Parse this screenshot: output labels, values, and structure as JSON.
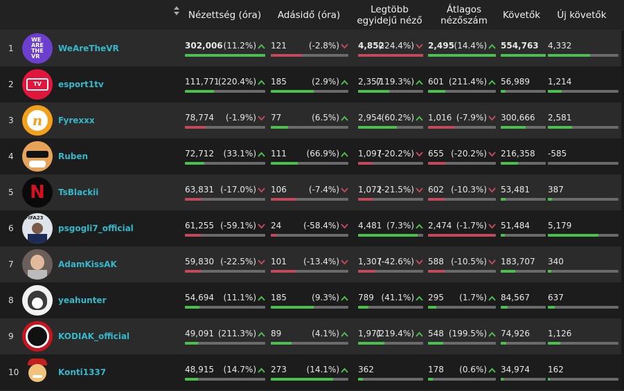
{
  "headers": {
    "views": "Nézettség (óra)",
    "airtime": "Adásidő (óra)",
    "peak": "Legtöbb egyidejű néző",
    "avg": "Átlagos nézőszám",
    "followers": "Követők",
    "new_followers": "Új követők"
  },
  "colors": {
    "up": "#4dbe50",
    "down": "#c24a5c",
    "name": "#35b8c9"
  },
  "rows": [
    {
      "rank": "1",
      "name": "WeAreTheVR",
      "avatar": "werethevr-logo",
      "views": {
        "v": "302,006",
        "p": "(11.2%)",
        "t": "up",
        "fill": 1.0,
        "bold": true
      },
      "air": {
        "v": "121",
        "p": "(-2.8%)",
        "t": "down",
        "fill": 0.4
      },
      "peak": {
        "v": "4,852",
        "p": "(-24.4%)",
        "t": "down",
        "fill": 1.0,
        "bold": true
      },
      "avg": {
        "v": "2,495",
        "p": "(14.4%)",
        "t": "up",
        "fill": 1.0,
        "bold": true
      },
      "fol": {
        "v": "554,763",
        "fill": 1.0,
        "bold": true
      },
      "newf": {
        "v": "4,332",
        "fill": 0.6
      }
    },
    {
      "rank": "2",
      "name": "esport1tv",
      "avatar": "esport1-logo",
      "views": {
        "v": "111,771",
        "p": "(220.4%)",
        "t": "up",
        "fill": 0.36
      },
      "air": {
        "v": "185",
        "p": "(2.9%)",
        "t": "up",
        "fill": 0.55
      },
      "peak": {
        "v": "2,357",
        "p": "(119.3%)",
        "t": "up",
        "fill": 0.48
      },
      "avg": {
        "v": "601",
        "p": "(211.4%)",
        "t": "up",
        "fill": 0.25
      },
      "fol": {
        "v": "56,989",
        "fill": 0.1
      },
      "newf": {
        "v": "1,214",
        "fill": 0.2
      }
    },
    {
      "rank": "3",
      "name": "Fyrexxx",
      "avatar": "fyrexxx-logo",
      "views": {
        "v": "78,774",
        "p": "(-1.9%)",
        "t": "down",
        "fill": 0.26
      },
      "air": {
        "v": "77",
        "p": "(6.5%)",
        "t": "up",
        "fill": 0.22
      },
      "peak": {
        "v": "2,954",
        "p": "(60.2%)",
        "t": "up",
        "fill": 0.6
      },
      "avg": {
        "v": "1,016",
        "p": "(-7.9%)",
        "t": "down",
        "fill": 0.4
      },
      "fol": {
        "v": "300,666",
        "fill": 0.55
      },
      "newf": {
        "v": "2,581",
        "fill": 0.34
      }
    },
    {
      "rank": "4",
      "name": "Ruben",
      "avatar": "ruben-avatar",
      "views": {
        "v": "72,712",
        "p": "(33.1%)",
        "t": "up",
        "fill": 0.24
      },
      "air": {
        "v": "111",
        "p": "(66.9%)",
        "t": "up",
        "fill": 0.35
      },
      "peak": {
        "v": "1,097",
        "p": "(-20.2%)",
        "t": "down",
        "fill": 0.22
      },
      "avg": {
        "v": "655",
        "p": "(-20.2%)",
        "t": "down",
        "fill": 0.26
      },
      "fol": {
        "v": "216,358",
        "fill": 0.39
      },
      "newf": {
        "v": "-585",
        "fill": 0.0
      }
    },
    {
      "rank": "5",
      "name": "TsBlackii",
      "avatar": "tsblackii-logo",
      "views": {
        "v": "63,831",
        "p": "(-17.0%)",
        "t": "down",
        "fill": 0.21
      },
      "air": {
        "v": "106",
        "p": "(-7.4%)",
        "t": "down",
        "fill": 0.33
      },
      "peak": {
        "v": "1,072",
        "p": "(-21.5%)",
        "t": "down",
        "fill": 0.22
      },
      "avg": {
        "v": "602",
        "p": "(-10.3%)",
        "t": "down",
        "fill": 0.24
      },
      "fol": {
        "v": "53,481",
        "fill": 0.1
      },
      "newf": {
        "v": "387",
        "fill": 0.06
      }
    },
    {
      "rank": "6",
      "name": "psgogli7_official",
      "avatar": "fifa23-avatar",
      "views": {
        "v": "61,255",
        "p": "(-59.1%)",
        "t": "down",
        "fill": 0.2
      },
      "air": {
        "v": "24",
        "p": "(-58.4%)",
        "t": "down",
        "fill": 0.08
      },
      "peak": {
        "v": "4,481",
        "p": "(7.3%)",
        "t": "up",
        "fill": 0.92
      },
      "avg": {
        "v": "2,474",
        "p": "(-1.7%)",
        "t": "down",
        "fill": 0.99
      },
      "fol": {
        "v": "51,484",
        "fill": 0.09
      },
      "newf": {
        "v": "5,179",
        "fill": 0.72
      }
    },
    {
      "rank": "7",
      "name": "AdamKissAK",
      "avatar": "adamkiss-avatar",
      "views": {
        "v": "59,830",
        "p": "(-22.5%)",
        "t": "down",
        "fill": 0.2
      },
      "air": {
        "v": "101",
        "p": "(-13.4%)",
        "t": "down",
        "fill": 0.32
      },
      "peak": {
        "v": "1,307",
        "p": "(-42.6%)",
        "t": "down",
        "fill": 0.27
      },
      "avg": {
        "v": "588",
        "p": "(-10.5%)",
        "t": "down",
        "fill": 0.24
      },
      "fol": {
        "v": "183,707",
        "fill": 0.33
      },
      "newf": {
        "v": "340",
        "fill": 0.05
      }
    },
    {
      "rank": "8",
      "name": "yeahunter",
      "avatar": "husky-avatar",
      "views": {
        "v": "54,694",
        "p": "(11.1%)",
        "t": "up",
        "fill": 0.18
      },
      "air": {
        "v": "185",
        "p": "(9.3%)",
        "t": "up",
        "fill": 0.55
      },
      "peak": {
        "v": "789",
        "p": "(41.1%)",
        "t": "up",
        "fill": 0.16
      },
      "avg": {
        "v": "295",
        "p": "(1.7%)",
        "t": "up",
        "fill": 0.12
      },
      "fol": {
        "v": "84,567",
        "fill": 0.15
      },
      "newf": {
        "v": "637",
        "fill": 0.1
      }
    },
    {
      "rank": "9",
      "name": "KODIAK_official",
      "avatar": "kodiak-avatar",
      "views": {
        "v": "49,091",
        "p": "(211.3%)",
        "t": "up",
        "fill": 0.16
      },
      "air": {
        "v": "89",
        "p": "(4.1%)",
        "t": "up",
        "fill": 0.27
      },
      "peak": {
        "v": "1,971",
        "p": "(219.4%)",
        "t": "up",
        "fill": 0.4
      },
      "avg": {
        "v": "548",
        "p": "(199.5%)",
        "t": "up",
        "fill": 0.22
      },
      "fol": {
        "v": "74,926",
        "fill": 0.13
      },
      "newf": {
        "v": "1,126",
        "fill": 0.18
      }
    },
    {
      "rank": "10",
      "name": "Konti1337",
      "avatar": "konti-avatar",
      "views": {
        "v": "48,915",
        "p": "(14.7%)",
        "t": "up",
        "fill": 0.16
      },
      "air": {
        "v": "273",
        "p": "(14.1%)",
        "t": "up",
        "fill": 0.8
      },
      "peak": {
        "v": "362",
        "p": "",
        "t": "",
        "fill": 0.07
      },
      "avg": {
        "v": "178",
        "p": "(0.6%)",
        "t": "up",
        "fill": 0.07
      },
      "fol": {
        "v": "34,974",
        "fill": 0.06
      },
      "newf": {
        "v": "162",
        "fill": 0.03
      }
    }
  ]
}
